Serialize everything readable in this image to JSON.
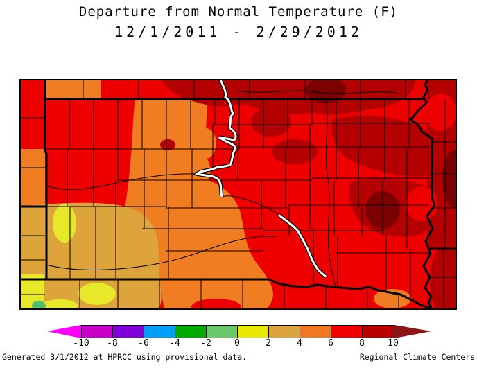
{
  "title": {
    "line1": "Departure from Normal Temperature (F)",
    "line2": "12/1/2011 - 2/29/2012"
  },
  "footer": {
    "left": "Generated 3/1/2012 at HPRCC using provisional data.",
    "right": "Regional Climate Centers"
  },
  "colorbar": {
    "tick_labels": [
      "-10",
      "-8",
      "-6",
      "-4",
      "-2",
      "0",
      "2",
      "4",
      "6",
      "8",
      "10"
    ],
    "segment_colors": [
      "#C800C8",
      "#8000D8",
      "#00A0F8",
      "#00AA00",
      "#6CC86C",
      "#E8E800",
      "#DCA43C",
      "#F07820",
      "#F00000",
      "#B80000"
    ],
    "arrow_left_color": "#FF00FF",
    "arrow_right_color": "#8C1414",
    "tick_spacing_px": 45
  },
  "palette": {
    "red": "#EE0000",
    "dark_red": "#B40000",
    "maroon": "#7D0000",
    "orange": "#F07D22",
    "tan": "#DEA43C",
    "yellow": "#E8E82A",
    "green": "#50BE6E",
    "river_white": "#FFFFFF",
    "line_black": "#000000"
  }
}
